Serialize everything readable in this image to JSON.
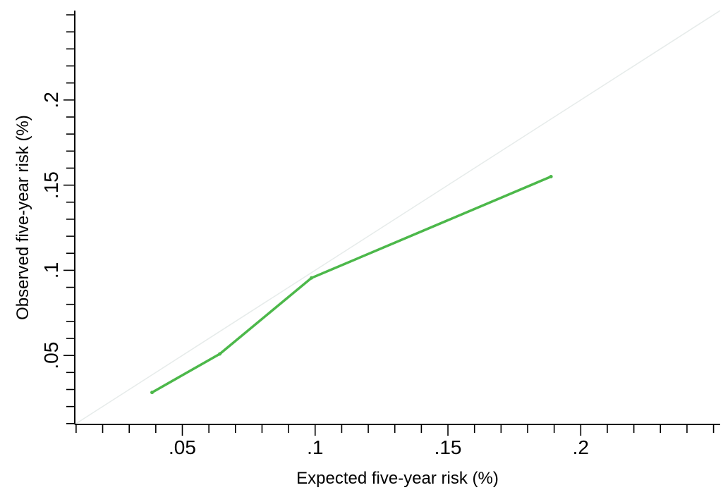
{
  "chart_data": {
    "type": "line",
    "title": "",
    "xlabel": "Expected five-year risk (%)",
    "ylabel": "Observed five-year risk (%)",
    "xlim": [
      0.0095,
      0.2525
    ],
    "ylim": [
      0.0095,
      0.2525
    ],
    "x_ticks": [
      {
        "value": 0.05,
        "label": ".05"
      },
      {
        "value": 0.1,
        "label": ".1"
      },
      {
        "value": 0.15,
        "label": ".15"
      },
      {
        "value": 0.2,
        "label": ".2"
      }
    ],
    "y_ticks": [
      {
        "value": 0.05,
        "label": ".05"
      },
      {
        "value": 0.1,
        "label": ".1"
      },
      {
        "value": 0.15,
        "label": ".15"
      },
      {
        "value": 0.2,
        "label": ".2"
      }
    ],
    "minor_tick_step": 0.01,
    "grid": false,
    "reference_line": {
      "type": "identity",
      "color": "#e6ebea"
    },
    "series": [
      {
        "color": "#4cb84a",
        "x": [
          0.0386,
          0.0641,
          0.0986,
          0.1888
        ],
        "y": [
          0.0283,
          0.0509,
          0.0955,
          0.155
        ]
      }
    ]
  }
}
